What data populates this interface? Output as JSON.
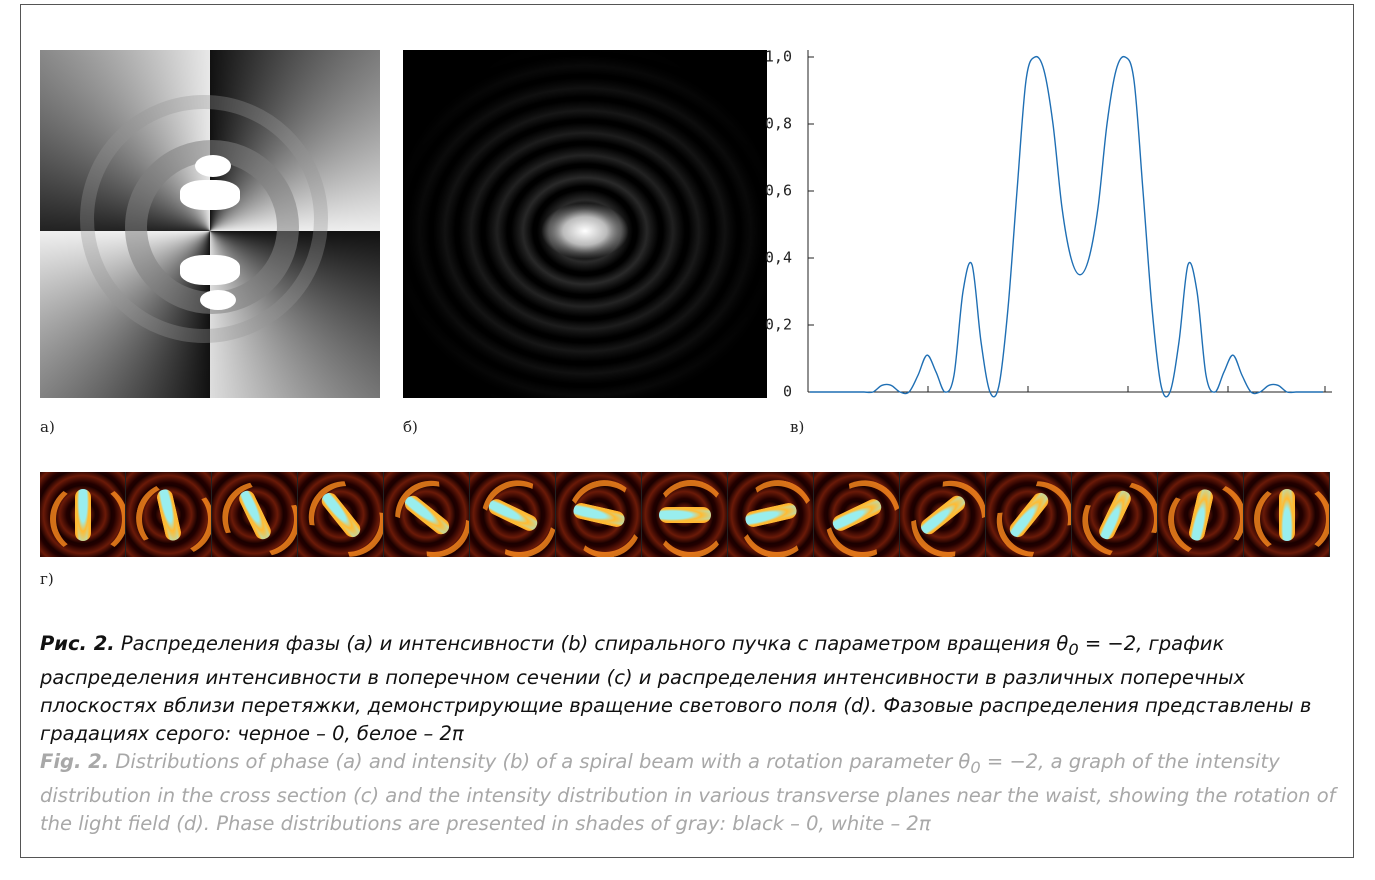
{
  "panel_labels": [
    "а)",
    "б)",
    "в)",
    "г)"
  ],
  "chart_data": {
    "type": "line",
    "categories": [
      null,
      null,
      null,
      null,
      null,
      null,
      null,
      null,
      null,
      null,
      null,
      null,
      null,
      null,
      null,
      null,
      null,
      null,
      null,
      null,
      null,
      null,
      null,
      null,
      null,
      null,
      null,
      null,
      null,
      null,
      null,
      null,
      null,
      null,
      null,
      null,
      null,
      null,
      null,
      null,
      null,
      null,
      null,
      null,
      null,
      null,
      null,
      null,
      null,
      null,
      null,
      null,
      null,
      null,
      null,
      null,
      null,
      null
    ],
    "values": [
      0,
      0,
      0,
      0,
      0,
      0,
      0,
      0,
      0.02,
      0.02,
      0,
      0,
      0.05,
      0.11,
      0.06,
      0,
      0.05,
      0.3,
      0.38,
      0.15,
      0,
      0.02,
      0.25,
      0.6,
      0.93,
      1.0,
      0.96,
      0.8,
      0.55,
      0.4,
      0.35,
      0.4,
      0.55,
      0.8,
      0.96,
      1.0,
      0.93,
      0.6,
      0.25,
      0.02,
      0,
      0.15,
      0.38,
      0.3,
      0.05,
      0,
      0.06,
      0.11,
      0.05,
      0,
      0,
      0.02,
      0.02,
      0,
      0,
      0,
      0,
      0
    ],
    "color": "#1f6fb4",
    "ylim": [
      0,
      1
    ],
    "yticks": [
      {
        "value": 0,
        "label": "0"
      },
      {
        "value": 0.2,
        "label": "0,2"
      },
      {
        "value": 0.4,
        "label": "0,4"
      },
      {
        "value": 0.6,
        "label": "0,6"
      },
      {
        "value": 0.8,
        "label": "0,8"
      },
      {
        "value": 1,
        "label": "1,0"
      }
    ]
  },
  "caption": {
    "ru": {
      "label": "Рис. 2.",
      "text1": " Распределения фазы (a) и интенсивности (b) спирального пучка с параметром вращения θ",
      "sub": "0",
      "text2": " = −2, график распределения интенсивности в поперечном сечении (c) и распределения интенсивности в различных поперечных плоскостях вблизи перетяжки, демонстрирующие вращение светового поля (d). Фазовые распределения представлены в градациях серого: черное – 0, белое – 2π"
    },
    "en": {
      "label": "Fig. 2.",
      "text1": " Distributions of phase (a) and intensity (b) of a spiral beam with a rotation parameter θ",
      "sub": "0",
      "text2": " = −2, a graph of the intensity distribution in the cross section (c) and the intensity distribution in various transverse planes near the waist, showing the rotation of the light field (d). Phase distributions are presented in shades of gray: black – 0, white – 2π"
    }
  }
}
